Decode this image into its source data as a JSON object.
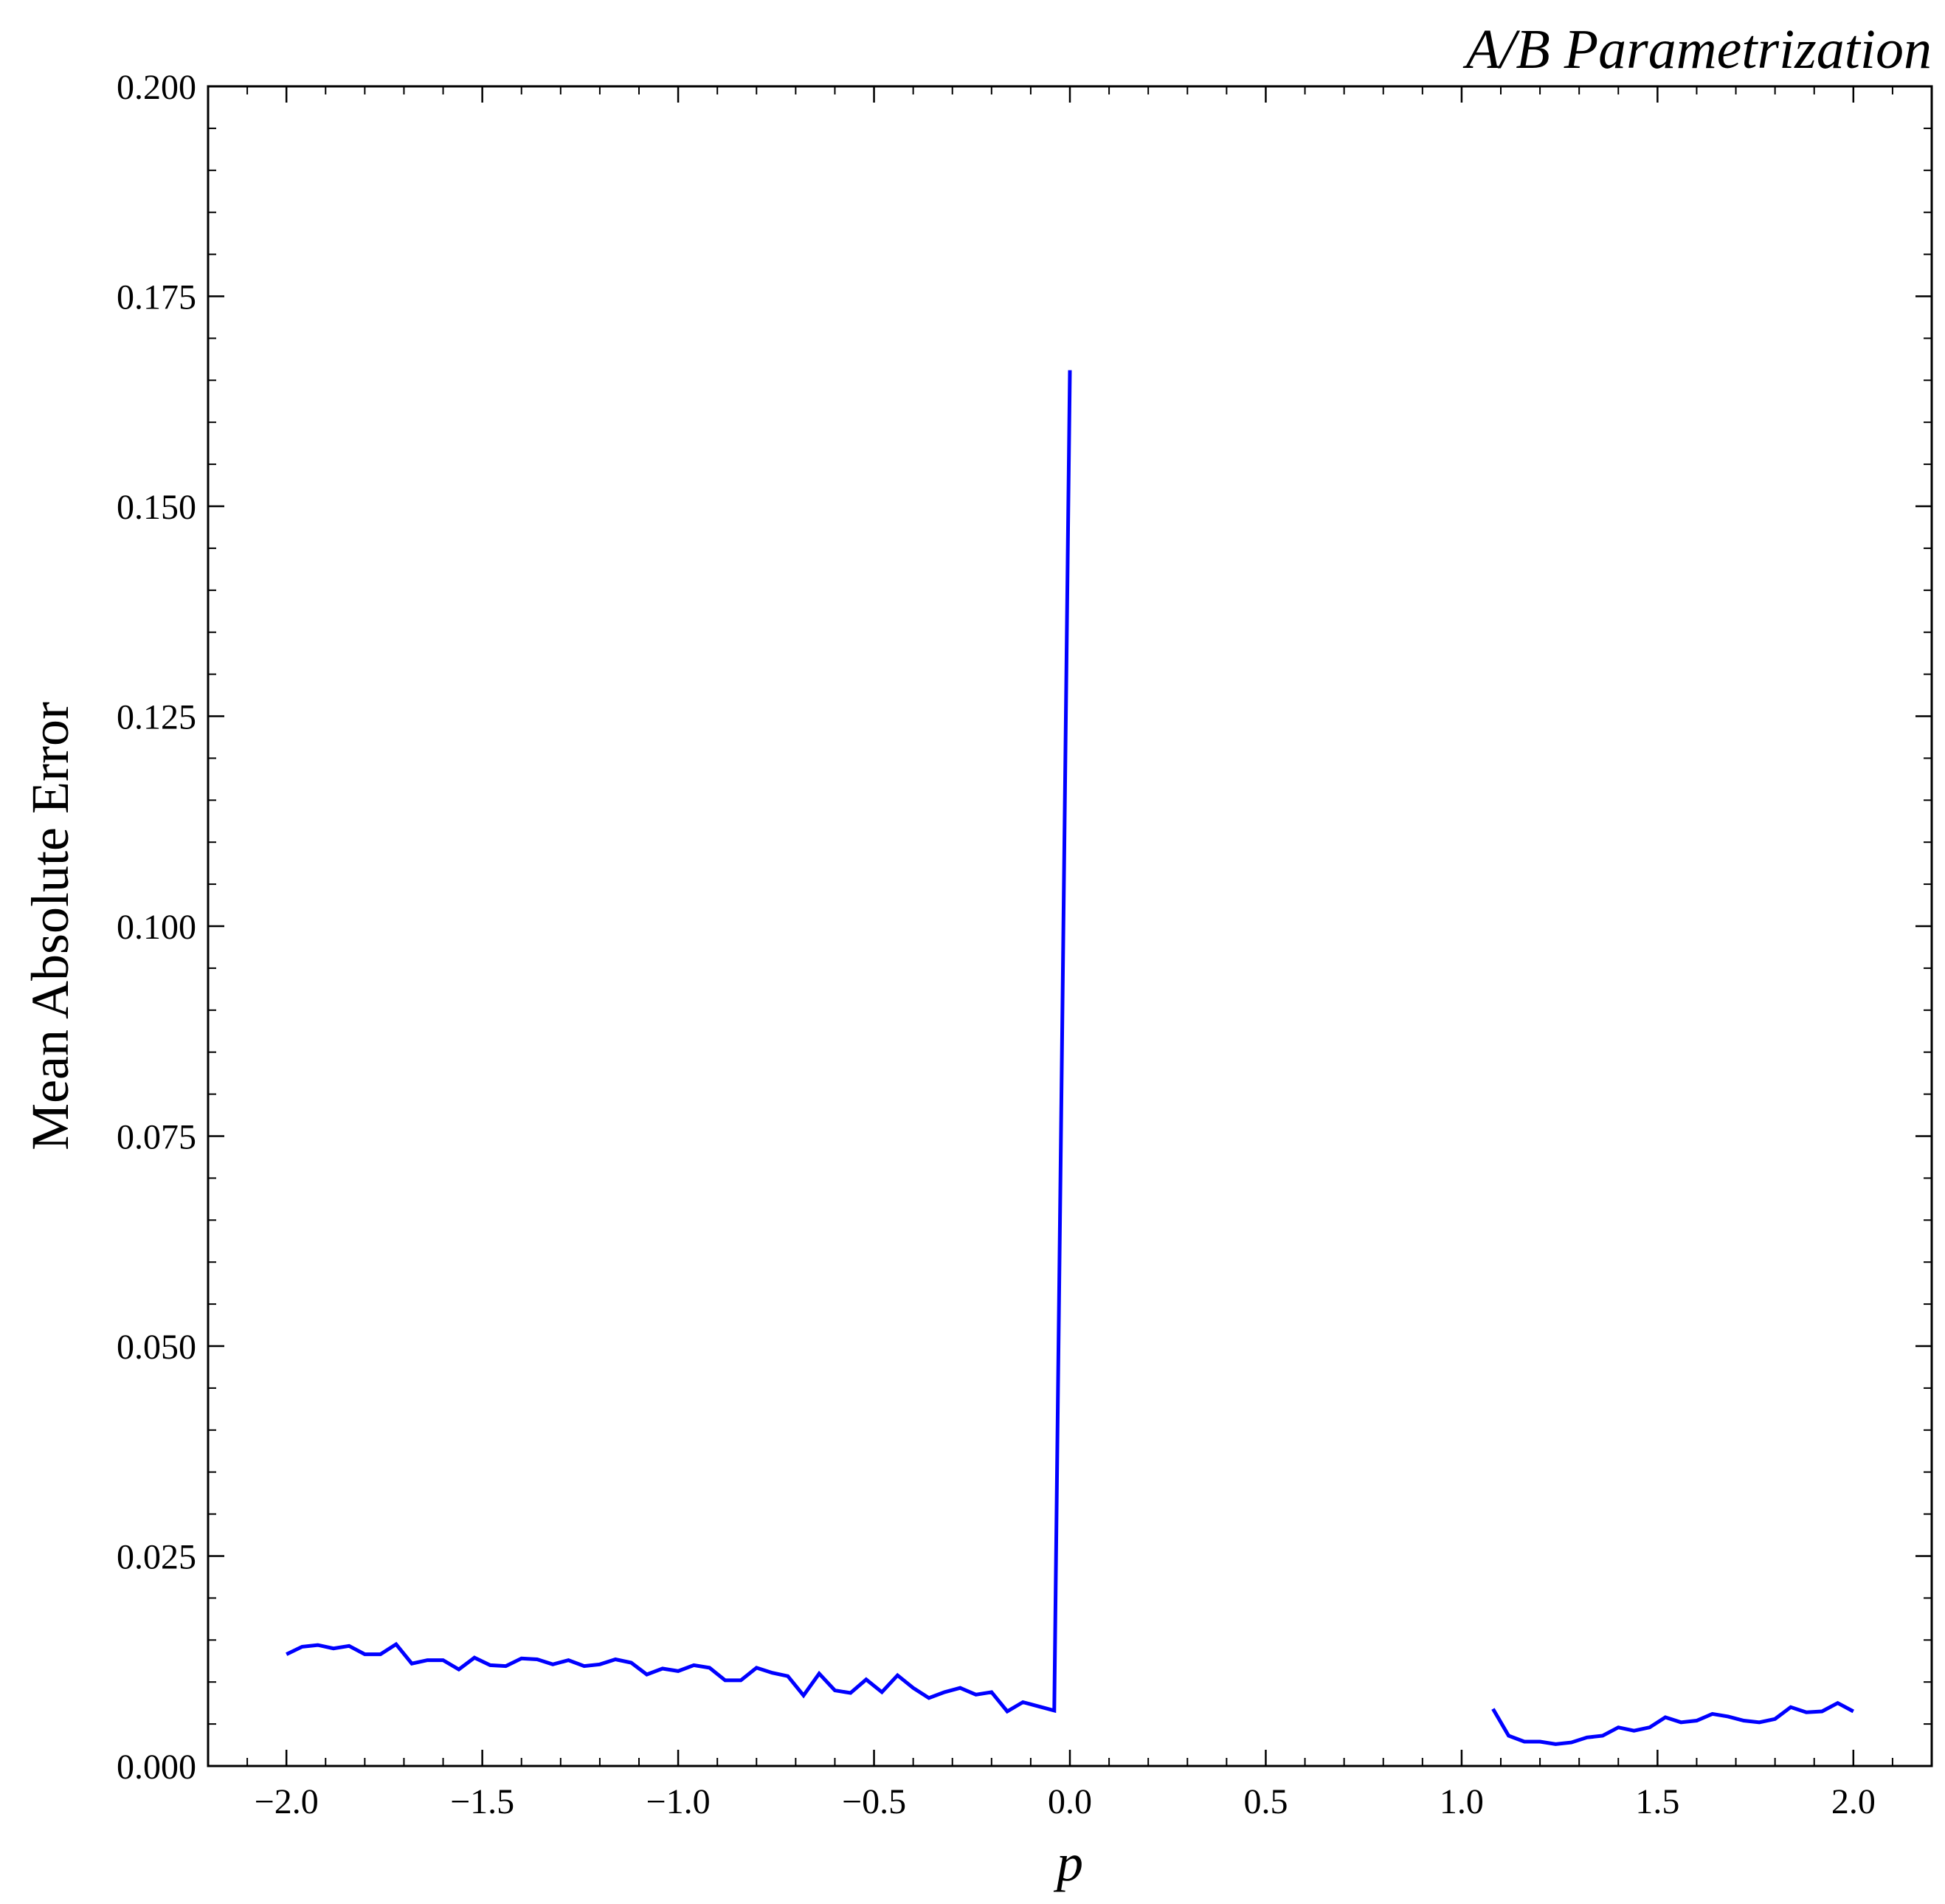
{
  "chart_data": {
    "type": "line",
    "title": "A/B Parametrization",
    "xlabel": "p",
    "ylabel": "Mean Absolute Error",
    "xlim": [
      -2.2,
      2.2
    ],
    "ylim": [
      0.0,
      0.2
    ],
    "x_ticks": [
      -2.0,
      -1.5,
      -1.0,
      -0.5,
      0.0,
      0.5,
      1.0,
      1.5,
      2.0
    ],
    "x_tick_labels": [
      "−2.0",
      "−1.5",
      "−1.0",
      "−0.5",
      "0.0",
      "0.5",
      "1.0",
      "1.5",
      "2.0"
    ],
    "y_ticks": [
      0.0,
      0.025,
      0.05,
      0.075,
      0.1,
      0.125,
      0.15,
      0.175,
      0.2
    ],
    "y_tick_labels": [
      "0.000",
      "0.025",
      "0.050",
      "0.075",
      "0.100",
      "0.125",
      "0.150",
      "0.175",
      "0.200"
    ],
    "grid": false,
    "line_color": "#0000ff",
    "series": [
      {
        "segments": [
          {
            "x": [
              -2.0,
              -1.96,
              -1.92,
              -1.88,
              -1.84,
              -1.8,
              -1.76,
              -1.72,
              -1.68,
              -1.64,
              -1.6,
              -1.56,
              -1.52,
              -1.48,
              -1.44,
              -1.4,
              -1.36,
              -1.32,
              -1.28,
              -1.24,
              -1.2,
              -1.16,
              -1.12,
              -1.08,
              -1.04,
              -1.0,
              -0.96,
              -0.92,
              -0.88,
              -0.84,
              -0.8,
              -0.76,
              -0.72,
              -0.68,
              -0.64,
              -0.6,
              -0.56,
              -0.52,
              -0.48,
              -0.44,
              -0.4,
              -0.36,
              -0.32,
              -0.28,
              -0.24,
              -0.2,
              -0.16,
              -0.12,
              -0.08,
              -0.04,
              0.0
            ],
            "y": [
              0.0133,
              0.0142,
              0.0144,
              0.014,
              0.0143,
              0.0133,
              0.0133,
              0.0145,
              0.0122,
              0.0126,
              0.0126,
              0.0115,
              0.0129,
              0.012,
              0.0119,
              0.0128,
              0.0127,
              0.0121,
              0.0126,
              0.0119,
              0.0121,
              0.0127,
              0.0123,
              0.0109,
              0.0116,
              0.0113,
              0.012,
              0.0117,
              0.0102,
              0.0102,
              0.0117,
              0.0111,
              0.0107,
              0.0084,
              0.011,
              0.009,
              0.0087,
              0.0103,
              0.0088,
              0.0108,
              0.0093,
              0.0081,
              0.0088,
              0.0093,
              0.0085,
              0.0088,
              0.0065,
              0.0076,
              0.0071,
              0.0066,
              0.1662
            ]
          },
          {
            "x": [
              1.08,
              1.12,
              1.16,
              1.2,
              1.24,
              1.28,
              1.32,
              1.36,
              1.4,
              1.44,
              1.48,
              1.52,
              1.56,
              1.6,
              1.64,
              1.68,
              1.72,
              1.76,
              1.8,
              1.84,
              1.88,
              1.92,
              1.96,
              2.0
            ],
            "y": [
              0.0068,
              0.0036,
              0.0029,
              0.0029,
              0.0026,
              0.0028,
              0.0034,
              0.0036,
              0.0046,
              0.0042,
              0.0046,
              0.0058,
              0.0052,
              0.0054,
              0.0062,
              0.0059,
              0.0054,
              0.0052,
              0.0056,
              0.007,
              0.0064,
              0.0065,
              0.0075,
              0.0065
            ]
          }
        ]
      }
    ]
  }
}
